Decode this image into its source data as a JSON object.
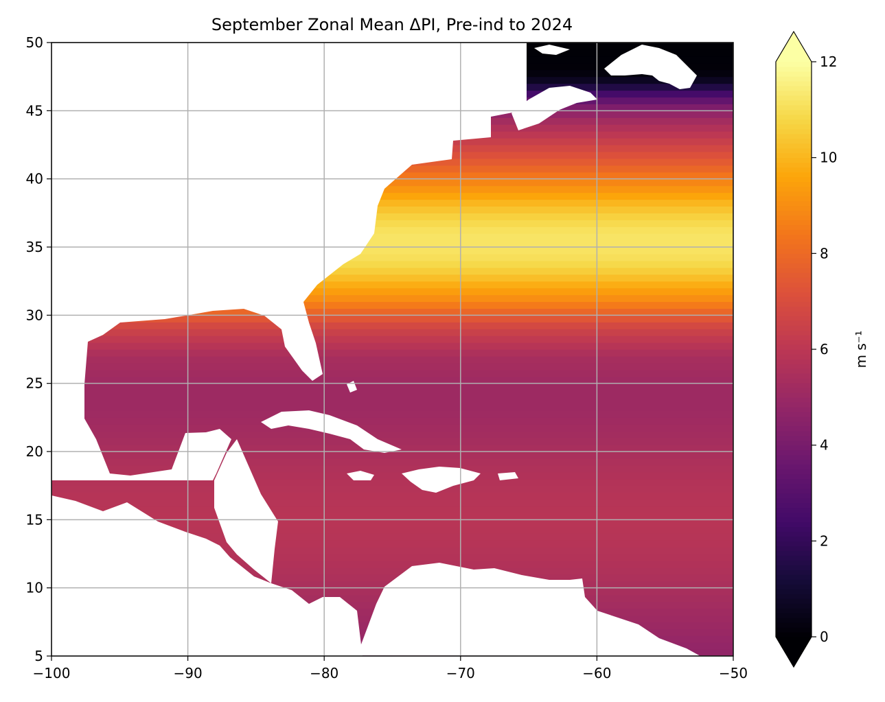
{
  "chart_data": {
    "type": "heatmap",
    "title": "September Zonal Mean ΔPI, Pre-ind to 2024",
    "xlim": [
      -100,
      -50
    ],
    "ylim": [
      5,
      50
    ],
    "x_ticks": [
      -100,
      -90,
      -80,
      -70,
      -60,
      -50
    ],
    "x_tick_labels": [
      "−100",
      "−90",
      "−80",
      "−70",
      "−60",
      "−50"
    ],
    "y_ticks": [
      5,
      10,
      15,
      20,
      25,
      30,
      35,
      40,
      45,
      50
    ],
    "y_tick_labels": [
      "5",
      "10",
      "15",
      "20",
      "25",
      "30",
      "35",
      "40",
      "45",
      "50"
    ],
    "grid": true,
    "colormap": "inferno",
    "colorbar": {
      "vmin": 0,
      "vmax": 12,
      "ticks": [
        0,
        2,
        4,
        6,
        8,
        10,
        12
      ],
      "tick_labels": [
        "0",
        "2",
        "4",
        "6",
        "8",
        "10",
        "12"
      ],
      "label": "m s⁻¹",
      "extend": "both",
      "placement": "right"
    },
    "zonal_profile": {
      "lat": [
        5,
        7,
        9,
        11,
        13,
        15,
        17,
        19,
        21,
        23,
        25,
        27,
        29,
        30,
        31,
        32,
        33,
        34,
        35,
        36,
        37,
        38,
        39,
        40,
        41,
        42,
        43,
        44,
        45,
        45.5,
        46,
        46.5,
        47,
        47.5,
        48,
        50
      ],
      "value": [
        4.7,
        5.0,
        5.3,
        5.6,
        5.8,
        5.9,
        5.8,
        5.6,
        5.3,
        5.1,
        5.1,
        5.4,
        6.6,
        7.6,
        8.8,
        9.6,
        10.4,
        11.0,
        11.2,
        11.2,
        10.8,
        10.2,
        9.4,
        8.6,
        7.7,
        7.0,
        6.2,
        5.5,
        4.6,
        3.8,
        3.0,
        2.0,
        1.0,
        0.3,
        0.1,
        0.05
      ]
    }
  }
}
